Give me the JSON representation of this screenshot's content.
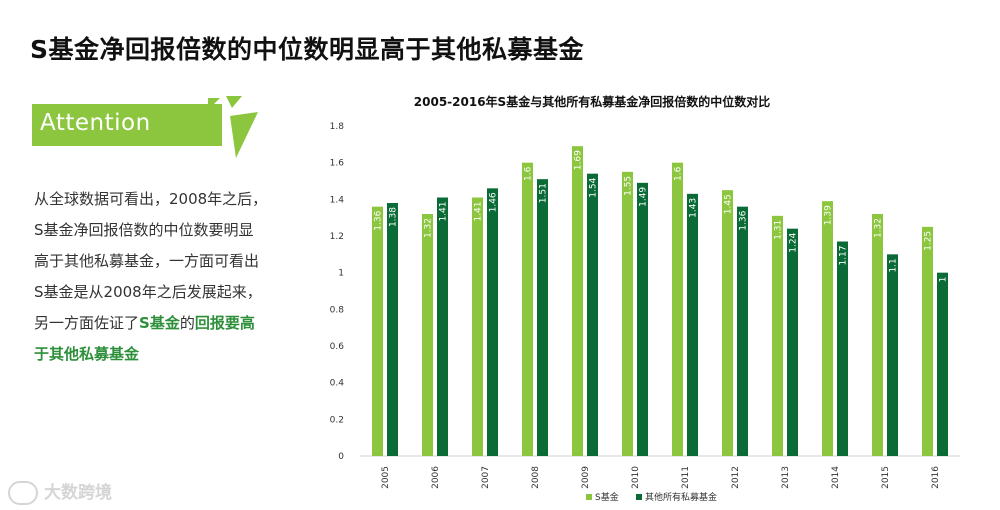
{
  "page": {
    "title": "S基金净回报倍数的中位数明显高于其他私募基金",
    "banner_label": "Attention",
    "body_lines": [
      "从全球数据可看出，2008年之后，",
      "S基金净回报倍数的中位数要明显",
      "高于其他私募基金，一方面可看出",
      "S基金是从2008年之后发展起来，"
    ],
    "body_line5_prefix": "另一方面佐证了",
    "body_line5_hl1": "S基金",
    "body_line5_mid": "的",
    "body_line5_hl2": "回报要高",
    "body_line6_hl": "于其他私募基金",
    "watermark": "大数跨境",
    "accent_color": "#8cc63f"
  },
  "chart_data": {
    "type": "bar",
    "title": "2005-2016年S基金与其他所有私募基金净回报倍数的中位数对比",
    "categories": [
      "2005",
      "2006",
      "2007",
      "2008",
      "2009",
      "2010",
      "2011",
      "2012",
      "2013",
      "2014",
      "2015",
      "2016"
    ],
    "series": [
      {
        "name": "S基金",
        "color": "#8cc63f",
        "values": [
          1.36,
          1.32,
          1.41,
          1.6,
          1.69,
          1.55,
          1.6,
          1.45,
          1.31,
          1.39,
          1.32,
          1.25
        ]
      },
      {
        "name": "其他所有私募基金",
        "color": "#0a6b36",
        "values": [
          1.38,
          1.41,
          1.46,
          1.51,
          1.54,
          1.49,
          1.43,
          1.36,
          1.24,
          1.17,
          1.1,
          1
        ]
      }
    ],
    "ylim": [
      0,
      1.8
    ],
    "yticks": [
      0,
      0.2,
      0.4,
      0.6,
      0.8,
      1,
      1.2,
      1.4,
      1.6,
      1.8
    ],
    "legend_position": "bottom",
    "grid": false
  }
}
